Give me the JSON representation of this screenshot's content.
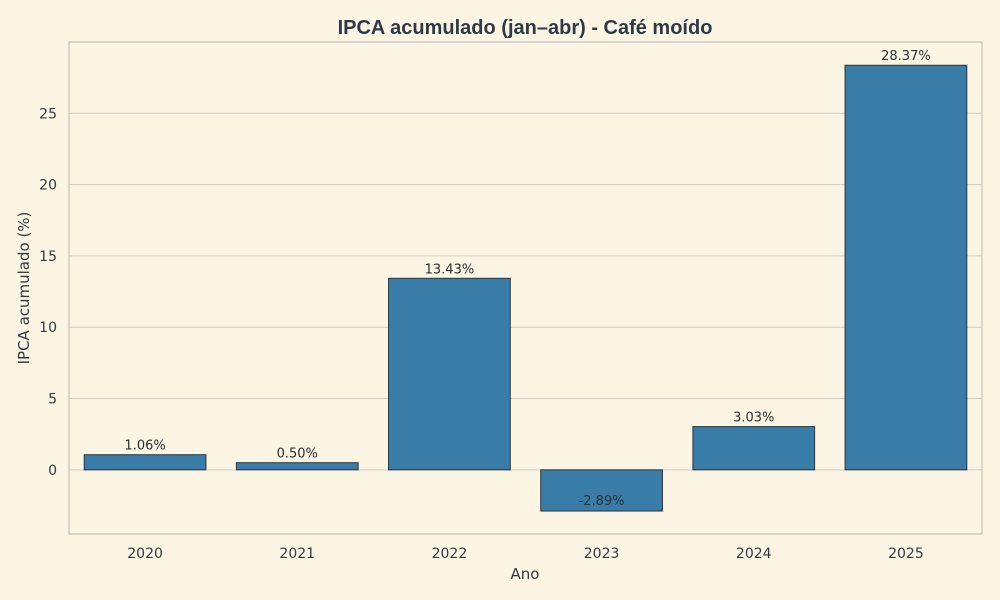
{
  "chart_data": {
    "type": "bar",
    "title": "IPCA acumulado (jan–abr) - Café moído",
    "xlabel": "Ano",
    "ylabel": "IPCA acumulado (%)",
    "categories": [
      "2020",
      "2021",
      "2022",
      "2023",
      "2024",
      "2025"
    ],
    "values": [
      1.06,
      0.5,
      13.43,
      -2.89,
      3.03,
      28.37
    ],
    "data_labels": [
      "1.06%",
      "0.50%",
      "13.43%",
      "-2.89%",
      "3.03%",
      "28.37%"
    ],
    "yticks": [
      0,
      5,
      10,
      15,
      20,
      25
    ],
    "ylim": [
      -4.5,
      30
    ],
    "grid": true,
    "bar_color": "#3a7ca8",
    "background_color": "#fdf5e3"
  }
}
